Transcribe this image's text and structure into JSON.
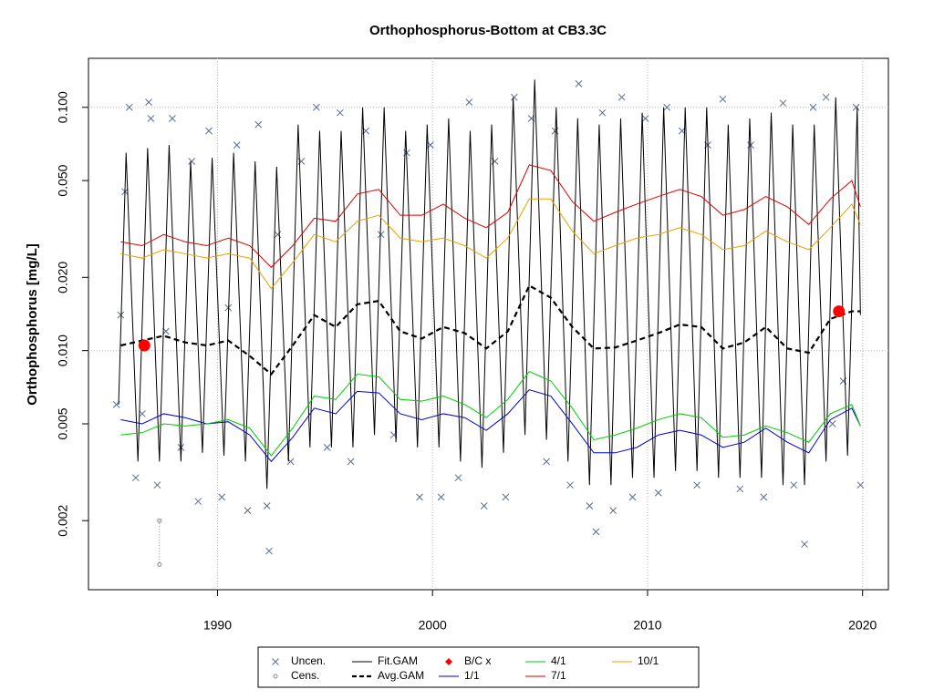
{
  "chart_data": {
    "type": "line",
    "title": "Orthophosphorus-Bottom at CB3.3C",
    "y_label": "Orthophosphorus [mg/L]",
    "xlim": [
      1984,
      2021.2
    ],
    "ylim": [
      0.00104,
      0.159
    ],
    "log_y": true,
    "xticks": [
      1990,
      2000,
      2010,
      2020
    ],
    "yticks": [
      0.002,
      0.005,
      {
        "value": 0.01,
        "label": "0.010"
      },
      {
        "value": 0.02,
        "label": "0.020"
      },
      {
        "value": 0.05,
        "label": "0.050"
      },
      {
        "value": 0.1,
        "label": "0.100"
      }
    ],
    "xgrid": true,
    "ygrid": [
      0.01,
      0.1
    ],
    "legend": "bottom",
    "series": [
      {
        "name": "Uncen.",
        "color": "#5a6c8a",
        "style": "points",
        "x": [
          1985.3,
          1985.5,
          1985.7,
          1985.9,
          1986.2,
          1986.5,
          1986.8,
          1986.9,
          1987.2,
          1987.6,
          1987.9,
          1988.3,
          1988.8,
          1989.1,
          1989.6,
          1990.2,
          1990.5,
          1990.9,
          1991.4,
          1991.9,
          1992.3,
          1992.4,
          1992.8,
          1993.4,
          1993.9,
          1994.6,
          1995.1,
          1995.7,
          1996.2,
          1996.9,
          1997.6,
          1998.2,
          1998.8,
          1999.4,
          1999.9,
          2000.4,
          2001.2,
          2001.7,
          2002.4,
          2002.9,
          2003.4,
          2003.8,
          2004.6,
          2005.3,
          2005.7,
          2006.4,
          2006.8,
          2007.3,
          2007.6,
          2007.9,
          2008.4,
          2008.8,
          2009.3,
          2009.9,
          2010.5,
          2010.9,
          2011.6,
          2012.3,
          2012.8,
          2013.5,
          2014.3,
          2014.8,
          2015.4,
          2016.3,
          2016.8,
          2017.3,
          2017.7,
          2018.3,
          2018.6,
          2019.1,
          2019.7,
          2019.9
        ],
        "values": [
          0.006,
          0.014,
          0.045,
          0.1,
          0.003,
          0.0055,
          0.105,
          0.09,
          0.0028,
          0.012,
          0.09,
          0.004,
          0.06,
          0.0024,
          0.08,
          0.0025,
          0.015,
          0.07,
          0.0022,
          0.085,
          0.0023,
          0.0015,
          0.03,
          0.0035,
          0.06,
          0.1,
          0.004,
          0.095,
          0.0035,
          0.08,
          0.03,
          0.0045,
          0.065,
          0.0025,
          0.07,
          0.0025,
          0.003,
          0.105,
          0.0023,
          0.06,
          0.0025,
          0.11,
          0.09,
          0.0035,
          0.08,
          0.0028,
          0.125,
          0.0023,
          0.0018,
          0.095,
          0.0022,
          0.11,
          0.0025,
          0.09,
          0.0026,
          0.1,
          0.08,
          0.0028,
          0.07,
          0.108,
          0.0027,
          0.07,
          0.0025,
          0.104,
          0.0028,
          0.0016,
          0.1,
          0.11,
          0.005,
          0.0075,
          0.1,
          0.0028
        ]
      },
      {
        "name": "Cens.",
        "color": "#888888",
        "style": "censored",
        "x": [
          1987.3
        ],
        "values": [
          0.002
        ],
        "low": [
          0.00132
        ]
      },
      {
        "name": "Fit.GAM",
        "color": "#000000",
        "style": "line",
        "x": [
          1985.4,
          1985.75,
          1986.3,
          1986.75,
          1987.3,
          1987.75,
          1988.3,
          1988.75,
          1989.3,
          1989.75,
          1990.3,
          1990.75,
          1991.3,
          1991.75,
          1992.3,
          1992.75,
          1993.3,
          1993.75,
          1994.3,
          1994.75,
          1995.3,
          1995.75,
          1996.3,
          1996.75,
          1997.3,
          1997.75,
          1998.3,
          1998.75,
          1999.3,
          1999.75,
          2000.3,
          2000.75,
          2001.3,
          2001.75,
          2002.3,
          2002.75,
          2003.3,
          2003.75,
          2004.3,
          2004.75,
          2005.3,
          2005.75,
          2006.3,
          2006.75,
          2007.3,
          2007.75,
          2008.3,
          2008.75,
          2009.3,
          2009.75,
          2010.3,
          2010.75,
          2011.3,
          2011.75,
          2012.3,
          2012.75,
          2013.3,
          2013.75,
          2014.3,
          2014.75,
          2015.3,
          2015.75,
          2016.3,
          2016.75,
          2017.3,
          2017.75,
          2018.3,
          2018.75,
          2019.3,
          2019.75,
          2019.9
        ],
        "values": [
          0.006,
          0.065,
          0.0035,
          0.068,
          0.0035,
          0.07,
          0.0035,
          0.06,
          0.0038,
          0.062,
          0.0037,
          0.065,
          0.0035,
          0.06,
          0.0027,
          0.057,
          0.0035,
          0.085,
          0.004,
          0.08,
          0.004,
          0.08,
          0.004,
          0.1,
          0.0045,
          0.1,
          0.0042,
          0.08,
          0.004,
          0.085,
          0.004,
          0.09,
          0.0035,
          0.08,
          0.0033,
          0.085,
          0.0038,
          0.11,
          0.0045,
          0.13,
          0.0043,
          0.1,
          0.0035,
          0.09,
          0.0028,
          0.085,
          0.0028,
          0.09,
          0.003,
          0.095,
          0.003,
          0.1,
          0.0032,
          0.1,
          0.0032,
          0.1,
          0.003,
          0.085,
          0.003,
          0.09,
          0.003,
          0.095,
          0.0028,
          0.085,
          0.0028,
          0.085,
          0.0035,
          0.11,
          0.0037,
          0.1,
          0.014
        ]
      },
      {
        "name": "Avg.GAM",
        "color": "#000000",
        "style": "dashed",
        "x": [
          1985.5,
          1986.5,
          1987.5,
          1988.5,
          1989.5,
          1990.5,
          1991.5,
          1992.5,
          1993.5,
          1994.5,
          1995.5,
          1996.5,
          1997.5,
          1998.5,
          1999.5,
          2000.5,
          2001.5,
          2002.5,
          2003.5,
          2004.5,
          2005.5,
          2006.5,
          2007.5,
          2008.5,
          2009.5,
          2010.5,
          2011.5,
          2012.5,
          2013.5,
          2014.5,
          2015.5,
          2016.5,
          2017.5,
          2018.5,
          2019.5,
          2019.9
        ],
        "values": [
          0.0105,
          0.011,
          0.0115,
          0.0108,
          0.0105,
          0.011,
          0.0095,
          0.008,
          0.0105,
          0.014,
          0.0125,
          0.0155,
          0.016,
          0.012,
          0.0112,
          0.0125,
          0.0118,
          0.0102,
          0.012,
          0.0185,
          0.0165,
          0.0125,
          0.0102,
          0.0103,
          0.011,
          0.0118,
          0.0128,
          0.0125,
          0.0102,
          0.0108,
          0.0125,
          0.0102,
          0.0098,
          0.0135,
          0.0145,
          0.0145
        ]
      },
      {
        "name": "B/C x",
        "color": "#ff0000",
        "style": "dots",
        "x": [
          1986.6,
          2018.9
        ],
        "values": [
          0.0105,
          0.0145
        ]
      },
      {
        "name": "1/1",
        "color": "#0000cc",
        "style": "line",
        "x": [
          1985.5,
          1986.5,
          1987.5,
          1988.5,
          1989.5,
          1990.5,
          1991.5,
          1992.5,
          1993.5,
          1994.5,
          1995.5,
          1996.5,
          1997.5,
          1998.5,
          1999.5,
          2000.5,
          2001.5,
          2002.5,
          2003.5,
          2004.5,
          2005.5,
          2006.5,
          2007.5,
          2008.5,
          2009.5,
          2010.5,
          2011.5,
          2012.5,
          2013.5,
          2014.5,
          2015.5,
          2016.5,
          2017.5,
          2018.5,
          2019.5,
          2019.9
        ],
        "values": [
          0.0052,
          0.005,
          0.0055,
          0.0053,
          0.005,
          0.0051,
          0.0045,
          0.0035,
          0.0044,
          0.0058,
          0.0055,
          0.0068,
          0.0067,
          0.0055,
          0.0052,
          0.0055,
          0.0053,
          0.0047,
          0.0055,
          0.0069,
          0.0065,
          0.005,
          0.0038,
          0.0038,
          0.004,
          0.0045,
          0.0047,
          0.0045,
          0.004,
          0.0042,
          0.0048,
          0.0042,
          0.0038,
          0.0052,
          0.0058,
          0.0049
        ]
      },
      {
        "name": "4/1",
        "color": "#00cc00",
        "style": "line",
        "x": [
          1985.5,
          1986.5,
          1987.5,
          1988.5,
          1989.5,
          1990.5,
          1991.5,
          1992.5,
          1993.5,
          1994.5,
          1995.5,
          1996.5,
          1997.5,
          1998.5,
          1999.5,
          2000.5,
          2001.5,
          2002.5,
          2003.5,
          2004.5,
          2005.5,
          2006.5,
          2007.5,
          2008.5,
          2009.5,
          2010.5,
          2011.5,
          2012.5,
          2013.5,
          2014.5,
          2015.5,
          2016.5,
          2017.5,
          2018.5,
          2019.5,
          2019.9
        ],
        "values": [
          0.0045,
          0.0046,
          0.005,
          0.0049,
          0.005,
          0.0052,
          0.0048,
          0.0037,
          0.0048,
          0.0065,
          0.0063,
          0.008,
          0.0078,
          0.0063,
          0.0062,
          0.0065,
          0.006,
          0.0053,
          0.0063,
          0.0082,
          0.0075,
          0.0058,
          0.0043,
          0.0045,
          0.0048,
          0.0052,
          0.0055,
          0.0053,
          0.0044,
          0.0045,
          0.0049,
          0.0046,
          0.0042,
          0.0055,
          0.006,
          0.0049
        ]
      },
      {
        "name": "7/1",
        "color": "#dd0000",
        "style": "line",
        "x": [
          1985.5,
          1986.5,
          1987.5,
          1988.5,
          1989.5,
          1990.5,
          1991.5,
          1992.5,
          1993.5,
          1994.5,
          1995.5,
          1996.5,
          1997.5,
          1998.5,
          1999.5,
          2000.5,
          2001.5,
          2002.5,
          2003.5,
          2004.5,
          2005.5,
          2006.5,
          2007.5,
          2008.5,
          2009.5,
          2010.5,
          2011.5,
          2012.5,
          2013.5,
          2014.5,
          2015.5,
          2016.5,
          2017.5,
          2018.5,
          2019.5,
          2019.9
        ],
        "values": [
          0.028,
          0.027,
          0.03,
          0.028,
          0.027,
          0.029,
          0.027,
          0.022,
          0.027,
          0.035,
          0.034,
          0.044,
          0.046,
          0.036,
          0.036,
          0.04,
          0.035,
          0.032,
          0.037,
          0.058,
          0.055,
          0.041,
          0.034,
          0.037,
          0.04,
          0.043,
          0.046,
          0.043,
          0.036,
          0.038,
          0.043,
          0.039,
          0.033,
          0.042,
          0.05,
          0.039
        ]
      },
      {
        "name": "10/1",
        "color": "#e8a000",
        "style": "line",
        "x": [
          1985.5,
          1986.5,
          1987.5,
          1988.5,
          1989.5,
          1990.5,
          1991.5,
          1992.5,
          1993.5,
          1994.5,
          1995.5,
          1996.5,
          1997.5,
          1998.5,
          1999.5,
          2000.5,
          2001.5,
          2002.5,
          2003.5,
          2004.5,
          2005.5,
          2006.5,
          2007.5,
          2008.5,
          2009.5,
          2010.5,
          2011.5,
          2012.5,
          2013.5,
          2014.5,
          2015.5,
          2016.5,
          2017.5,
          2018.5,
          2019.5,
          2019.9
        ],
        "values": [
          0.025,
          0.024,
          0.026,
          0.025,
          0.024,
          0.025,
          0.024,
          0.018,
          0.023,
          0.03,
          0.028,
          0.034,
          0.036,
          0.029,
          0.028,
          0.029,
          0.027,
          0.024,
          0.029,
          0.042,
          0.042,
          0.031,
          0.025,
          0.027,
          0.029,
          0.03,
          0.032,
          0.03,
          0.026,
          0.027,
          0.031,
          0.028,
          0.026,
          0.032,
          0.04,
          0.033
        ]
      }
    ]
  }
}
